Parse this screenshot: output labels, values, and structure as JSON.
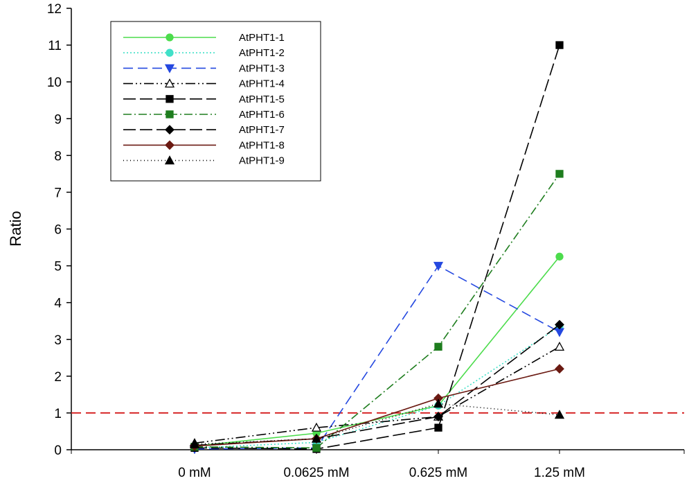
{
  "chart_data": {
    "type": "line",
    "title": "",
    "xlabel": "",
    "ylabel": "Ratio",
    "ylim": [
      0,
      12
    ],
    "yticks": [
      "0",
      "1",
      "2",
      "3",
      "4",
      "5",
      "6",
      "7",
      "8",
      "9",
      "10",
      "11",
      "12"
    ],
    "categories": [
      "0 mM",
      "0.0625 mM",
      "0.625 mM",
      "1.25 mM"
    ],
    "reference_line": {
      "y": 1,
      "color": "#d62728",
      "style": "dashed"
    },
    "legend_position": "top-left",
    "series": [
      {
        "name": "AtPHT1-1",
        "values": [
          0.1,
          0.45,
          1.2,
          5.25
        ],
        "color": "#4cdc4c",
        "dash": "",
        "marker": "circle",
        "fill": "#4cdc4c"
      },
      {
        "name": "AtPHT1-2",
        "values": [
          0.05,
          0.2,
          1.2,
          3.35
        ],
        "color": "#40e0c8",
        "dash": "2,3",
        "marker": "circle",
        "fill": "#40e0c8"
      },
      {
        "name": "AtPHT1-3",
        "values": [
          0.02,
          0.05,
          5.0,
          3.2
        ],
        "color": "#2448e0",
        "dash": "14,7",
        "marker": "triangle-down",
        "fill": "#2448e0"
      },
      {
        "name": "AtPHT1-4",
        "values": [
          0.18,
          0.6,
          0.9,
          2.8
        ],
        "color": "#000000",
        "dash": "14,4,2,4,2,4",
        "marker": "triangle-open",
        "fill": "#ffffff"
      },
      {
        "name": "AtPHT1-5",
        "values": [
          0.05,
          0.02,
          0.6,
          11.0
        ],
        "color": "#000000",
        "dash": "18,6",
        "marker": "square",
        "fill": "#000000"
      },
      {
        "name": "AtPHT1-6",
        "values": [
          0.08,
          0.05,
          2.8,
          7.5
        ],
        "color": "#1e7d1e",
        "dash": "12,4,2,4",
        "marker": "square",
        "fill": "#1e7d1e"
      },
      {
        "name": "AtPHT1-7",
        "values": [
          0.12,
          0.3,
          0.9,
          3.4
        ],
        "color": "#000000",
        "dash": "18,6",
        "marker": "diamond",
        "fill": "#000000"
      },
      {
        "name": "AtPHT1-8",
        "values": [
          0.1,
          0.3,
          1.4,
          2.2
        ],
        "color": "#6b1a12",
        "dash": "",
        "marker": "diamond",
        "fill": "#6b1a12"
      },
      {
        "name": "AtPHT1-9",
        "values": [
          0.15,
          0.3,
          1.25,
          0.95
        ],
        "color": "#000000",
        "dash": "1,4",
        "marker": "triangle",
        "fill": "#000000"
      }
    ]
  }
}
